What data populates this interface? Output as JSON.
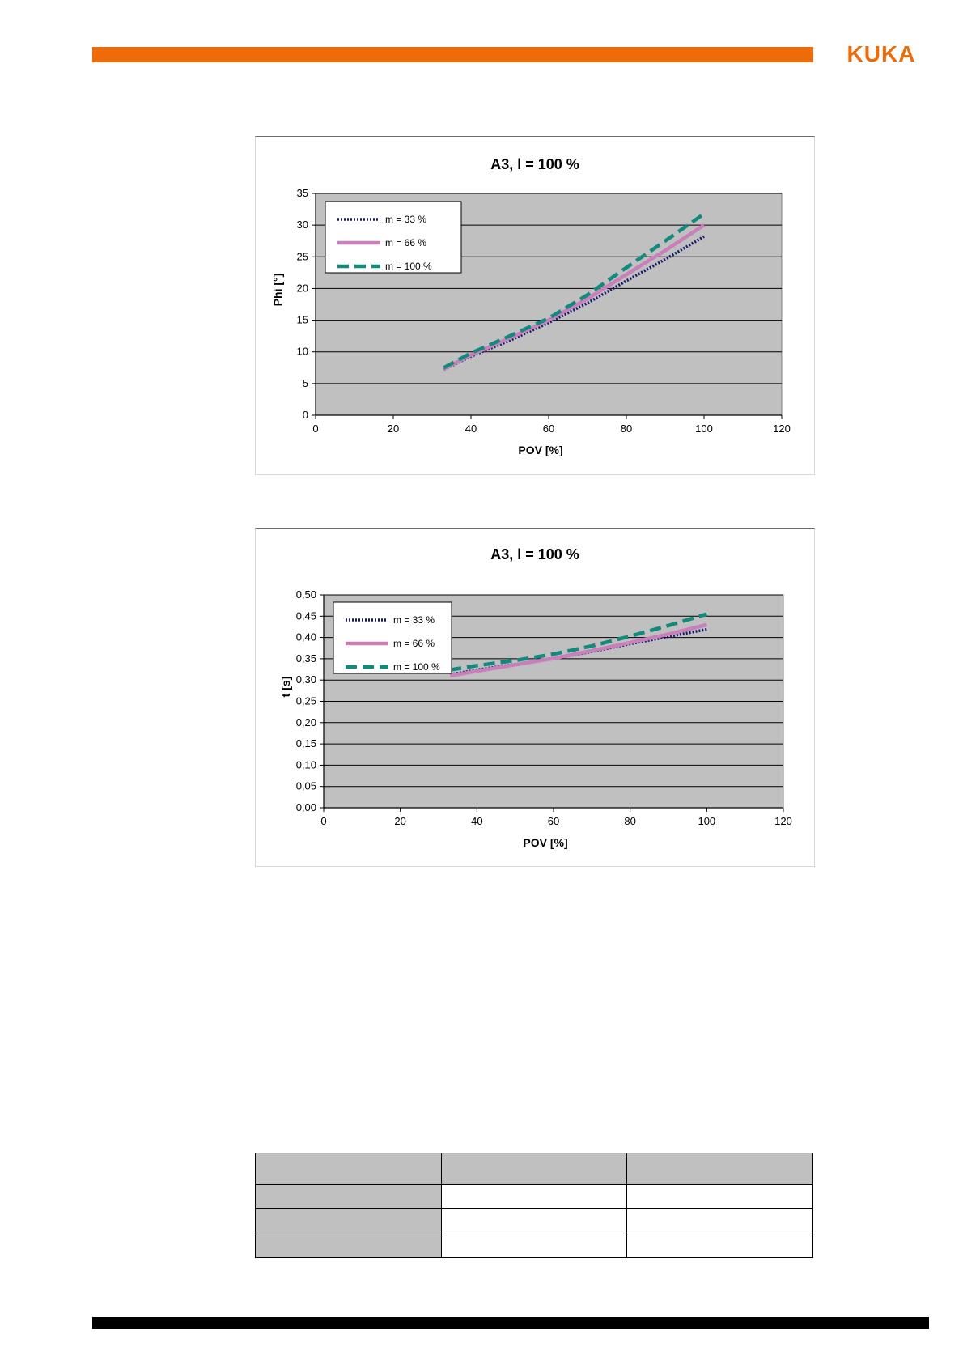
{
  "header": {
    "logo": "KUKA",
    "accent_color": "#ec6b0a"
  },
  "chart_data": [
    {
      "type": "line",
      "title": "A3,  l = 100 %",
      "xlabel": "POV [%]",
      "ylabel": "Phi [°]",
      "xlim": [
        0,
        120
      ],
      "ylim": [
        0,
        35
      ],
      "xticks": [
        "0",
        "20",
        "40",
        "60",
        "80",
        "100",
        "120"
      ],
      "yticks": [
        "0",
        "5",
        "10",
        "15",
        "20",
        "25",
        "30",
        "35"
      ],
      "grid": true,
      "legend": "top-left",
      "series": [
        {
          "name": "m = 33 %",
          "color": "#1a1a6e",
          "style": "dotted",
          "x": [
            33,
            40,
            50,
            60,
            70,
            80,
            90,
            100
          ],
          "y": [
            7.2,
            9.3,
            11.8,
            14.6,
            17.7,
            21.2,
            24.6,
            28.2
          ]
        },
        {
          "name": "m = 66 %",
          "color": "#c97fba",
          "style": "solid",
          "x": [
            33,
            40,
            50,
            60,
            70,
            80,
            90,
            100
          ],
          "y": [
            7.3,
            9.5,
            12.2,
            15.0,
            18.4,
            22.2,
            26.0,
            30.0
          ]
        },
        {
          "name": "m = 100 %",
          "color": "#138a7d",
          "style": "dashed",
          "x": [
            33,
            40,
            50,
            60,
            70,
            80,
            90,
            100
          ],
          "y": [
            7.5,
            9.8,
            12.5,
            15.3,
            19.0,
            23.3,
            27.5,
            31.8
          ]
        }
      ]
    },
    {
      "type": "line",
      "title": "A3, l = 100 %",
      "xlabel": "POV [%]",
      "ylabel": "t [s]",
      "xlim": [
        0,
        120
      ],
      "ylim": [
        0,
        0.5
      ],
      "xticks": [
        "0",
        "20",
        "40",
        "60",
        "80",
        "100",
        "120"
      ],
      "yticks": [
        "0,00",
        "0,05",
        "0,10",
        "0,15",
        "0,20",
        "0,25",
        "0,30",
        "0,35",
        "0,40",
        "0,45",
        "0,50"
      ],
      "grid": true,
      "legend": "top-left",
      "series": [
        {
          "name": "m = 33 %",
          "color": "#1a1a6e",
          "style": "dotted",
          "x": [
            33,
            40,
            50,
            60,
            70,
            80,
            90,
            100
          ],
          "y": [
            0.313,
            0.324,
            0.337,
            0.35,
            0.367,
            0.385,
            0.402,
            0.419
          ]
        },
        {
          "name": "m = 66 %",
          "color": "#c97fba",
          "style": "solid",
          "x": [
            33,
            40,
            50,
            60,
            70,
            80,
            90,
            100
          ],
          "y": [
            0.31,
            0.321,
            0.336,
            0.351,
            0.369,
            0.388,
            0.408,
            0.43
          ]
        },
        {
          "name": "m = 100 %",
          "color": "#138a7d",
          "style": "dashed",
          "x": [
            33,
            40,
            50,
            60,
            70,
            80,
            90,
            100
          ],
          "y": [
            0.324,
            0.334,
            0.346,
            0.361,
            0.38,
            0.403,
            0.428,
            0.455
          ]
        }
      ]
    }
  ],
  "table": {
    "header_color": "#c0c0c0",
    "rows": 3,
    "columns": 3
  }
}
